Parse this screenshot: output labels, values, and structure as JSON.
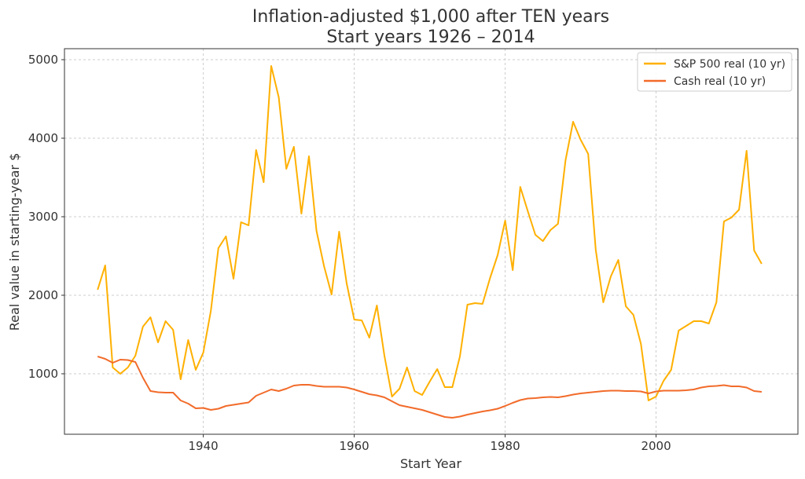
{
  "chart_data": {
    "type": "line",
    "title": "Inflation-adjusted $1,000 after TEN years",
    "subtitle": "Start years 1926 – 2014",
    "xlabel": "Start Year",
    "ylabel": "Real value in starting-year $",
    "xlim": [
      1921.6,
      2018.8
    ],
    "ylim": [
      230,
      5140
    ],
    "xticks": [
      1940,
      1960,
      1980,
      2000
    ],
    "yticks": [
      1000,
      2000,
      3000,
      4000,
      5000
    ],
    "grid": true,
    "legend_position": "top-right",
    "x_start": 1926,
    "series": [
      {
        "name": "S&P 500 real (10 yr)",
        "color": "#FFB000",
        "values": [
          2070,
          2380,
          1080,
          1000,
          1080,
          1230,
          1600,
          1720,
          1400,
          1670,
          1560,
          930,
          1430,
          1050,
          1270,
          1800,
          2600,
          2750,
          2210,
          2930,
          2890,
          3850,
          3440,
          4920,
          4520,
          3610,
          3890,
          3040,
          3770,
          2820,
          2370,
          2010,
          2810,
          2150,
          1690,
          1680,
          1460,
          1870,
          1230,
          710,
          810,
          1080,
          780,
          730,
          900,
          1060,
          830,
          830,
          1220,
          1880,
          1900,
          1890,
          2220,
          2510,
          2950,
          2320,
          3380,
          3070,
          2770,
          2690,
          2830,
          2910,
          3720,
          4210,
          3980,
          3800,
          2580,
          1910,
          2240,
          2450,
          1860,
          1750,
          1380,
          660,
          710,
          910,
          1050,
          1550,
          1610,
          1670,
          1670,
          1640,
          1910,
          2940,
          2990,
          3090,
          3840,
          2570,
          2400
        ]
      },
      {
        "name": "Cash real (10 yr)",
        "color": "#F26B2A",
        "values": [
          1220,
          1190,
          1140,
          1180,
          1175,
          1150,
          950,
          780,
          765,
          760,
          760,
          660,
          620,
          560,
          565,
          540,
          555,
          590,
          605,
          620,
          635,
          720,
          760,
          800,
          780,
          810,
          850,
          860,
          860,
          845,
          835,
          835,
          835,
          825,
          800,
          770,
          740,
          725,
          700,
          650,
          600,
          580,
          560,
          540,
          510,
          480,
          450,
          440,
          455,
          480,
          500,
          520,
          535,
          555,
          590,
          630,
          665,
          685,
          690,
          700,
          705,
          700,
          715,
          735,
          750,
          760,
          770,
          780,
          785,
          785,
          780,
          780,
          775,
          750,
          775,
          785,
          785,
          785,
          790,
          800,
          825,
          840,
          845,
          855,
          840,
          840,
          825,
          780,
          770
        ]
      }
    ]
  }
}
